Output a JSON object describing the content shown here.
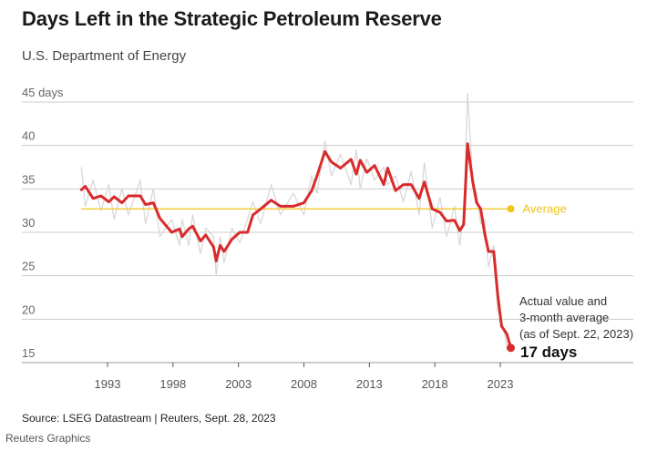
{
  "title": "Days Left in the Strategic Petroleum Reserve",
  "subtitle": "U.S. Department of Energy",
  "source": "Source: LSEG Datastream | Reuters, Sept. 28, 2023",
  "credit": "Reuters Graphics",
  "chart_data": {
    "type": "line",
    "title": "Days Left in the Strategic Petroleum Reserve",
    "ylabel": "days",
    "ylim": [
      15,
      45
    ],
    "xlim": [
      1989.4,
      2027.0
    ],
    "y_ticks": [
      15,
      20,
      25,
      30,
      35,
      40,
      45
    ],
    "y_tick_labels": [
      "15",
      "20",
      "25",
      "30",
      "35",
      "40",
      "45 days"
    ],
    "x_ticks": [
      1993,
      1998,
      2003,
      2008,
      2013,
      2018,
      2023
    ],
    "x_tick_labels": [
      "1993",
      "1998",
      "2003",
      "2008",
      "2013",
      "2018",
      "2023"
    ],
    "grid": true,
    "colors": {
      "average_3m": "#d92b2b",
      "actual": "#d6d6d6",
      "average_line": "#f0c419",
      "grid": "#cccccc"
    },
    "x": [
      1991.0,
      1991.3,
      1991.9,
      1992.5,
      1993.1,
      1993.5,
      1994.1,
      1994.6,
      1995.5,
      1995.9,
      1996.5,
      1997.0,
      1997.9,
      1998.5,
      1998.7,
      1999.2,
      1999.5,
      2000.1,
      2000.5,
      2001.1,
      2001.3,
      2001.6,
      2001.9,
      2002.5,
      2003.1,
      2003.7,
      2004.1,
      2004.7,
      2005.5,
      2006.2,
      2007.2,
      2008.0,
      2008.6,
      2009.0,
      2009.6,
      2010.1,
      2010.8,
      2011.6,
      2012.0,
      2012.3,
      2012.8,
      2013.4,
      2014.1,
      2014.4,
      2015.0,
      2015.6,
      2016.2,
      2016.8,
      2017.2,
      2017.8,
      2018.4,
      2018.9,
      2019.5,
      2019.9,
      2020.2,
      2020.5,
      2020.9,
      2021.2,
      2021.5,
      2021.8,
      2022.1,
      2022.5,
      2022.8,
      2023.1,
      2023.5,
      2023.8
    ],
    "series": [
      {
        "key": "actual",
        "values": [
          37.5,
          33.0,
          36.0,
          32.5,
          35.5,
          31.5,
          35.0,
          32.0,
          36.0,
          31.0,
          35.0,
          29.5,
          31.5,
          28.5,
          31.5,
          28.5,
          32.0,
          27.5,
          30.5,
          29.5,
          25.0,
          29.5,
          26.5,
          30.5,
          28.8,
          31.5,
          33.5,
          31.0,
          35.5,
          32.0,
          34.5,
          32.0,
          36.5,
          34.5,
          40.5,
          36.5,
          39.0,
          35.5,
          39.5,
          35.0,
          38.5,
          36.0,
          37.5,
          35.5,
          36.5,
          33.5,
          37.0,
          32.0,
          38.0,
          30.5,
          34.0,
          29.5,
          33.0,
          28.5,
          32.0,
          46.0,
          36.0,
          34.5,
          31.0,
          31.5,
          26.0,
          28.5,
          21.0,
          20.0,
          17.0,
          16.5
        ]
      },
      {
        "key": "average_3m",
        "values": [
          34.9,
          35.3,
          33.9,
          34.2,
          33.5,
          34.1,
          33.4,
          34.2,
          34.2,
          33.2,
          33.4,
          31.6,
          30.0,
          30.4,
          29.5,
          30.4,
          30.7,
          29.0,
          29.7,
          28.3,
          26.7,
          28.5,
          27.8,
          29.2,
          30.0,
          30.0,
          32.0,
          32.7,
          33.7,
          33.0,
          33.0,
          33.4,
          34.8,
          36.5,
          39.3,
          38.1,
          37.4,
          38.4,
          36.7,
          38.3,
          36.9,
          37.7,
          35.5,
          37.4,
          34.8,
          35.5,
          35.5,
          33.9,
          35.8,
          32.7,
          32.3,
          31.3,
          31.4,
          30.2,
          30.9,
          40.2,
          35.8,
          33.4,
          32.7,
          29.9,
          27.8,
          27.8,
          22.9,
          19.2,
          18.3,
          16.7
        ]
      }
    ],
    "average": {
      "value": 32.7,
      "label": "Average",
      "x_range": [
        1991.0,
        2023.8
      ]
    },
    "annotation": {
      "lines": [
        "Actual value and",
        "3-month average",
        "(as of Sept. 22, 2023)"
      ],
      "value_label": "17 days",
      "x": 2023.8,
      "y": 16.7
    }
  }
}
